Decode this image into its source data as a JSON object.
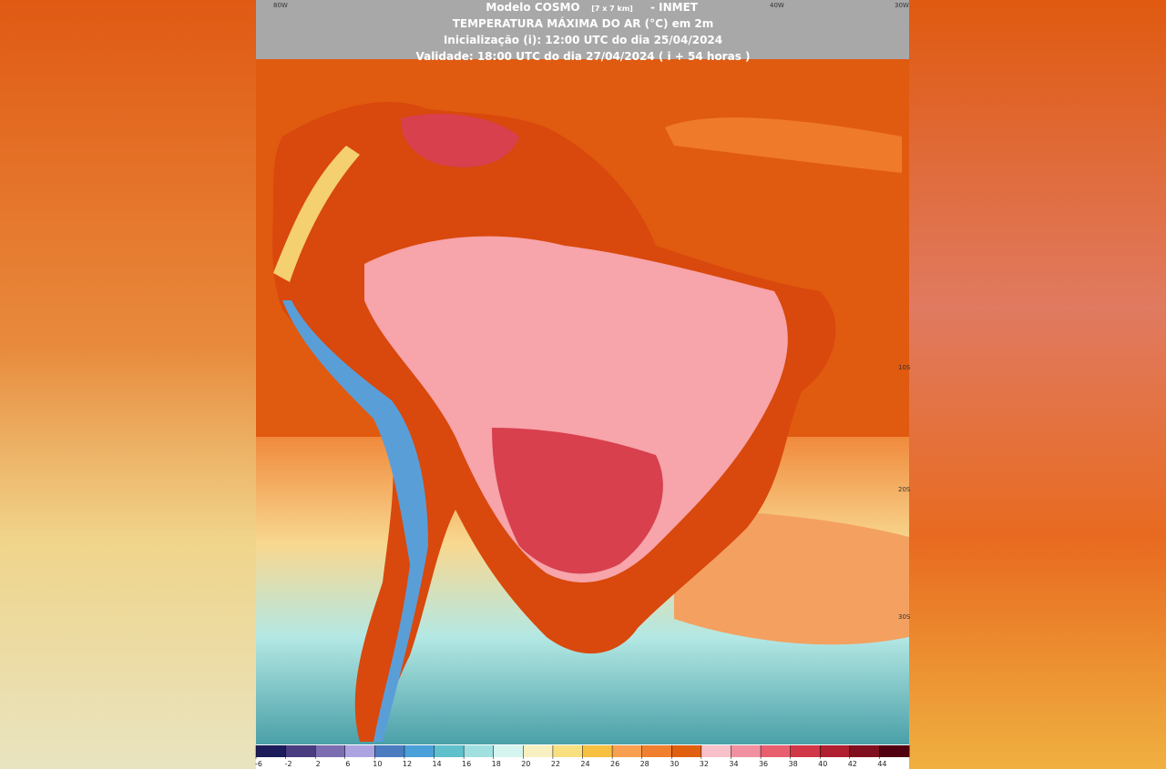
{
  "header": {
    "model": "Modelo COSMO",
    "resolution": "[7 x 7 km]",
    "agency": "- INMET",
    "title": "TEMPERATURA MÁXIMA DO AR (°C) em 2m",
    "init": "Inicialização (i): 12:00 UTC do dia 25/04/2024",
    "valid": "Validade: 18:00 UTC do dia 27/04/2024 ( i + 54 horas )"
  },
  "map": {
    "longitude_labels": [
      "80W",
      "40W",
      "30W"
    ],
    "latitude_labels": [
      "10S",
      "20S",
      "30S"
    ]
  },
  "colorbar": {
    "ticks": [
      -6,
      -2,
      2,
      6,
      10,
      12,
      14,
      16,
      18,
      20,
      22,
      24,
      26,
      28,
      30,
      32,
      34,
      36,
      38,
      40,
      42,
      44
    ],
    "colors": [
      "#1c1c5a",
      "#4a3c80",
      "#7c6cb0",
      "#aca4e0",
      "#4c7cc0",
      "#4aa0d8",
      "#60c0cc",
      "#a0e0e0",
      "#d4f4f0",
      "#f8f0c0",
      "#f8e080",
      "#f8c040",
      "#f8a050",
      "#f08030",
      "#e06010",
      "#f8c0c8",
      "#f090a0",
      "#e86070",
      "#d03848",
      "#b02030",
      "#801020",
      "#500010"
    ]
  }
}
